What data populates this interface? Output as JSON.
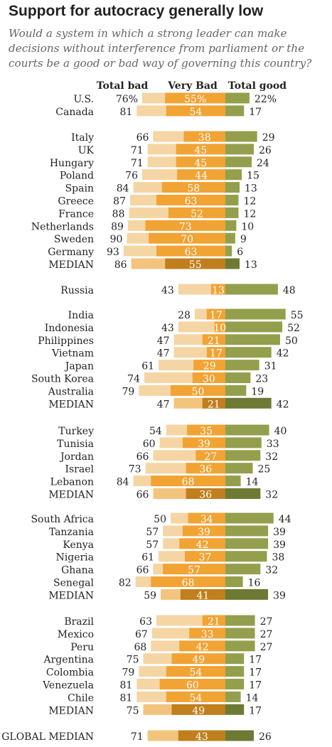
{
  "title": "Support for autocracy generally low",
  "subtitle": "Would a system in which a strong leader can make decisions without interference from parliament or the courts be a good or bad way of governing this country?",
  "column_headers": {
    "total_bad": "Total bad",
    "very_bad": "Very Bad",
    "total_good": "Total good"
  },
  "colors": {
    "light_bad": "#f5d5a4",
    "very_bad": "#f1a334",
    "good": "#939f4c",
    "median_light_bad": "#f3c47d",
    "median_very_bad": "#c07f1c",
    "median_good": "#6e7a33"
  },
  "chart_data": {
    "type": "bar",
    "subtype": "diverging-stacked",
    "series": [
      {
        "name": "Total bad"
      },
      {
        "name": "Very Bad"
      },
      {
        "name": "Total good"
      }
    ],
    "groups": [
      {
        "rows": [
          {
            "label": "U.S.",
            "total_bad": 76,
            "very_bad": 55,
            "total_good": 22,
            "total_bad_text": "76%",
            "very_bad_text": "55%",
            "total_good_text": "22%"
          },
          {
            "label": "Canada",
            "total_bad": 81,
            "very_bad": 54,
            "total_good": 17
          }
        ]
      },
      {
        "rows": [
          {
            "label": "Italy",
            "total_bad": 66,
            "very_bad": 38,
            "total_good": 29
          },
          {
            "label": "UK",
            "total_bad": 71,
            "very_bad": 45,
            "total_good": 26
          },
          {
            "label": "Hungary",
            "total_bad": 71,
            "very_bad": 45,
            "total_good": 24
          },
          {
            "label": "Poland",
            "total_bad": 76,
            "very_bad": 44,
            "total_good": 15
          },
          {
            "label": "Spain",
            "total_bad": 84,
            "very_bad": 58,
            "total_good": 13
          },
          {
            "label": "Greece",
            "total_bad": 87,
            "very_bad": 63,
            "total_good": 12
          },
          {
            "label": "France",
            "total_bad": 88,
            "very_bad": 52,
            "total_good": 12
          },
          {
            "label": "Netherlands",
            "total_bad": 89,
            "very_bad": 73,
            "total_good": 10
          },
          {
            "label": "Sweden",
            "total_bad": 90,
            "very_bad": 70,
            "total_good": 9
          },
          {
            "label": "Germany",
            "total_bad": 93,
            "very_bad": 63,
            "total_good": 6
          },
          {
            "label": "MEDIAN",
            "total_bad": 86,
            "very_bad": 55,
            "total_good": 13,
            "median": true
          }
        ]
      },
      {
        "rows": [
          {
            "label": "Russia",
            "total_bad": 43,
            "very_bad": 13,
            "total_good": 48
          }
        ]
      },
      {
        "rows": [
          {
            "label": "India",
            "total_bad": 28,
            "very_bad": 17,
            "total_good": 55
          },
          {
            "label": "Indonesia",
            "total_bad": 43,
            "very_bad": 10,
            "total_good": 52
          },
          {
            "label": "Philippines",
            "total_bad": 47,
            "very_bad": 21,
            "total_good": 50
          },
          {
            "label": "Vietnam",
            "total_bad": 47,
            "very_bad": 17,
            "total_good": 42
          },
          {
            "label": "Japan",
            "total_bad": 61,
            "very_bad": 29,
            "total_good": 31
          },
          {
            "label": "South Korea",
            "total_bad": 74,
            "very_bad": 30,
            "total_good": 23
          },
          {
            "label": "Australia",
            "total_bad": 79,
            "very_bad": 50,
            "total_good": 19
          },
          {
            "label": "MEDIAN",
            "total_bad": 47,
            "very_bad": 21,
            "total_good": 42,
            "median": true
          }
        ]
      },
      {
        "rows": [
          {
            "label": "Turkey",
            "total_bad": 54,
            "very_bad": 35,
            "total_good": 40
          },
          {
            "label": "Tunisia",
            "total_bad": 60,
            "very_bad": 39,
            "total_good": 33
          },
          {
            "label": "Jordan",
            "total_bad": 66,
            "very_bad": 27,
            "total_good": 32
          },
          {
            "label": "Israel",
            "total_bad": 73,
            "very_bad": 36,
            "total_good": 25
          },
          {
            "label": "Lebanon",
            "total_bad": 84,
            "very_bad": 68,
            "total_good": 14
          },
          {
            "label": "MEDIAN",
            "total_bad": 66,
            "very_bad": 36,
            "total_good": 32,
            "median": true
          }
        ]
      },
      {
        "rows": [
          {
            "label": "South Africa",
            "total_bad": 50,
            "very_bad": 34,
            "total_good": 44
          },
          {
            "label": "Tanzania",
            "total_bad": 57,
            "very_bad": 39,
            "total_good": 39
          },
          {
            "label": "Kenya",
            "total_bad": 57,
            "very_bad": 42,
            "total_good": 39
          },
          {
            "label": "Nigeria",
            "total_bad": 61,
            "very_bad": 37,
            "total_good": 38
          },
          {
            "label": "Ghana",
            "total_bad": 66,
            "very_bad": 57,
            "total_good": 32
          },
          {
            "label": "Senegal",
            "total_bad": 82,
            "very_bad": 68,
            "total_good": 16
          },
          {
            "label": "MEDIAN",
            "total_bad": 59,
            "very_bad": 41,
            "total_good": 39,
            "median": true
          }
        ]
      },
      {
        "rows": [
          {
            "label": "Brazil",
            "total_bad": 63,
            "very_bad": 21,
            "total_good": 27
          },
          {
            "label": "Mexico",
            "total_bad": 67,
            "very_bad": 33,
            "total_good": 27
          },
          {
            "label": "Peru",
            "total_bad": 68,
            "very_bad": 42,
            "total_good": 27
          },
          {
            "label": "Argentina",
            "total_bad": 75,
            "very_bad": 49,
            "total_good": 17
          },
          {
            "label": "Colombia",
            "total_bad": 79,
            "very_bad": 54,
            "total_good": 17
          },
          {
            "label": "Venezuela",
            "total_bad": 81,
            "very_bad": 60,
            "total_good": 17
          },
          {
            "label": "Chile",
            "total_bad": 81,
            "very_bad": 54,
            "total_good": 14
          },
          {
            "label": "MEDIAN",
            "total_bad": 75,
            "very_bad": 49,
            "total_good": 17,
            "median": true
          }
        ]
      },
      {
        "rows": [
          {
            "label": "GLOBAL MEDIAN",
            "total_bad": 71,
            "very_bad": 43,
            "total_good": 26,
            "median": true,
            "global": true
          }
        ]
      }
    ]
  }
}
